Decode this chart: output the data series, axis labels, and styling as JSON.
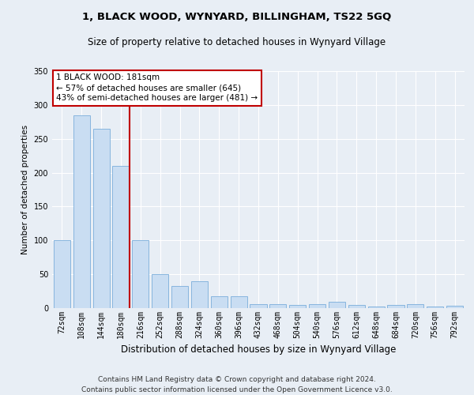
{
  "title": "1, BLACK WOOD, WYNYARD, BILLINGHAM, TS22 5GQ",
  "subtitle": "Size of property relative to detached houses in Wynyard Village",
  "xlabel": "Distribution of detached houses by size in Wynyard Village",
  "ylabel": "Number of detached properties",
  "footnote1": "Contains HM Land Registry data © Crown copyright and database right 2024.",
  "footnote2": "Contains public sector information licensed under the Open Government Licence v3.0.",
  "bar_color": "#c9ddf2",
  "bar_edge_color": "#7aaedb",
  "marker_line_color": "#c00000",
  "annotation_line1": "1 BLACK WOOD: 181sqm",
  "annotation_line2": "← 57% of detached houses are smaller (645)",
  "annotation_line3": "43% of semi-detached houses are larger (481) →",
  "annotation_box_color": "#ffffff",
  "annotation_box_edge": "#c00000",
  "marker_bin_index": 3,
  "categories": [
    "72sqm",
    "108sqm",
    "144sqm",
    "180sqm",
    "216sqm",
    "252sqm",
    "288sqm",
    "324sqm",
    "360sqm",
    "396sqm",
    "432sqm",
    "468sqm",
    "504sqm",
    "540sqm",
    "576sqm",
    "612sqm",
    "648sqm",
    "684sqm",
    "720sqm",
    "756sqm",
    "792sqm"
  ],
  "values": [
    100,
    285,
    265,
    210,
    100,
    50,
    33,
    40,
    18,
    18,
    6,
    6,
    5,
    6,
    9,
    5,
    2,
    5,
    6,
    2,
    4
  ],
  "ylim": [
    0,
    350
  ],
  "yticks": [
    0,
    50,
    100,
    150,
    200,
    250,
    300,
    350
  ],
  "bg_color": "#e8eef5",
  "grid_color": "#ffffff",
  "title_fontsize": 9.5,
  "subtitle_fontsize": 8.5,
  "xlabel_fontsize": 8.5,
  "ylabel_fontsize": 7.5,
  "tick_fontsize": 7,
  "footnote_fontsize": 6.5
}
